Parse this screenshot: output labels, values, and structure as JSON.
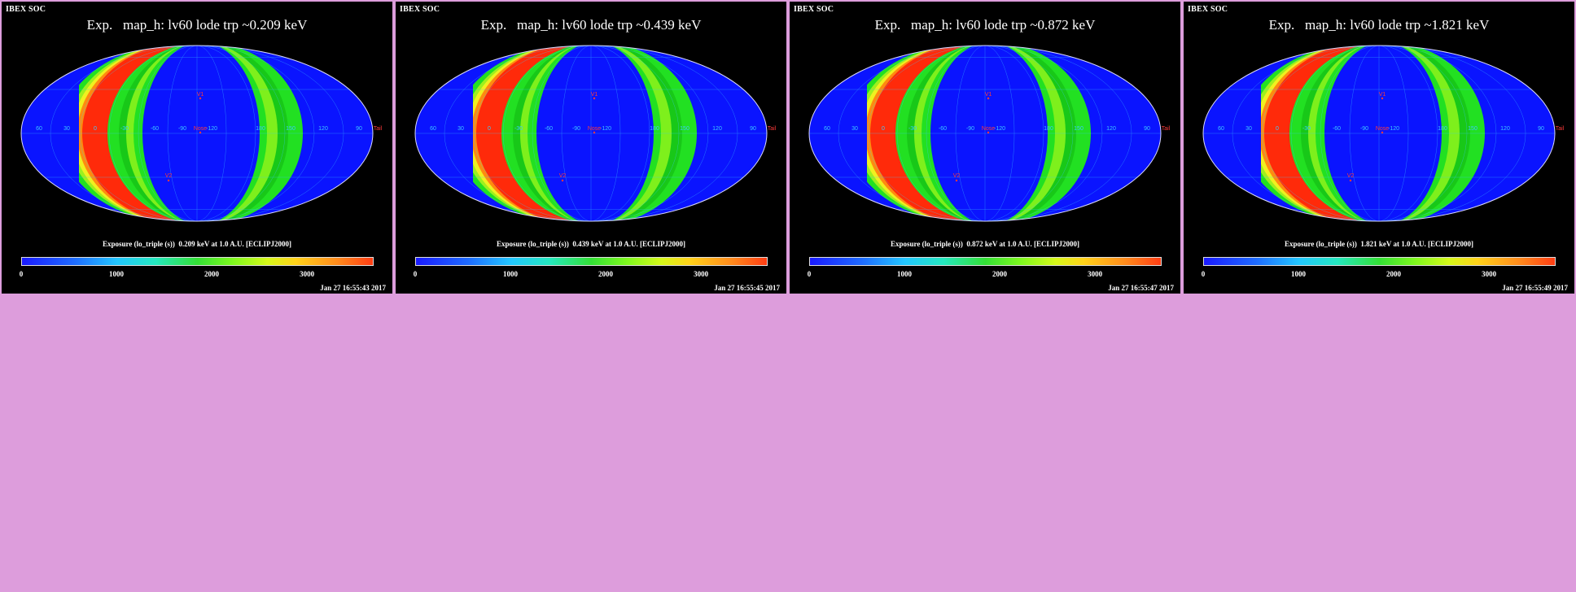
{
  "colors": {
    "background": "#dd9ddc",
    "panel": "#000000",
    "sky_blue": "#0a14ff",
    "band_green": "#22e022",
    "band_yellow": "#f0f020",
    "band_orange": "#ff8a10",
    "band_red": "#ff2a0a",
    "grid": "#3cc8ff"
  },
  "colorbar": {
    "ticks": [
      "0",
      "1000",
      "2000",
      "3000"
    ],
    "tick_values": [
      0,
      1000,
      2000,
      3000
    ],
    "range": [
      0,
      3700
    ]
  },
  "grid_labels": [
    "60",
    "30",
    "0",
    "-30",
    "-60",
    "-90",
    "-120",
    "180",
    "150",
    "120",
    "90"
  ],
  "markers": {
    "v1": "V1",
    "v2": "V2",
    "nose": "Nose",
    "tail": "Tail"
  },
  "panels": [
    {
      "soc": "IBEX SOC",
      "title": "Exp.   map_h: lv60 lode trp ~0.209 keV",
      "cbar_label": "Exposure (lo_triple (s))  0.209 keV at 1.0 A.U. [ECLIPJ2000]",
      "timestamp": "Jan 27 16:55:43 2017"
    },
    {
      "soc": "IBEX SOC",
      "title": "Exp.   map_h: lv60 lode trp ~0.439 keV",
      "cbar_label": "Exposure (lo_triple (s))  0.439 keV at 1.0 A.U. [ECLIPJ2000]",
      "timestamp": "Jan 27 16:55:45 2017"
    },
    {
      "soc": "IBEX SOC",
      "title": "Exp.   map_h: lv60 lode trp ~0.872 keV",
      "cbar_label": "Exposure (lo_triple (s))  0.872 keV at 1.0 A.U. [ECLIPJ2000]",
      "timestamp": "Jan 27 16:55:47 2017"
    },
    {
      "soc": "IBEX SOC",
      "title": "Exp.   map_h: lv60 lode trp ~1.821 keV",
      "cbar_label": "Exposure (lo_triple (s))  1.821 keV at 1.0 A.U. [ECLIPJ2000]",
      "timestamp": "Jan 27 16:55:49 2017"
    }
  ]
}
